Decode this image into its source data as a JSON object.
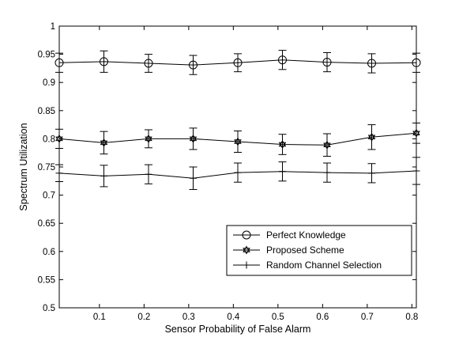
{
  "chart_data": {
    "type": "line",
    "xlabel": "Sensor Probability of False Alarm",
    "ylabel": "Spectrum Utilization",
    "xlim": [
      0.01,
      0.81
    ],
    "ylim": [
      0.5,
      1.0
    ],
    "xticks": [
      0.1,
      0.2,
      0.3,
      0.4,
      0.5,
      0.6,
      0.7,
      0.8
    ],
    "xtick_labels": [
      "0.1",
      "0.2",
      "0.3",
      "0.4",
      "0.5",
      "0.6",
      "0.7",
      "0.8"
    ],
    "yticks": [
      0.5,
      0.55,
      0.6,
      0.65,
      0.7,
      0.75,
      0.8,
      0.85,
      0.9,
      0.95,
      1.0
    ],
    "ytick_labels": [
      "0.5",
      "0.55",
      "0.6",
      "0.65",
      "0.7",
      "0.75",
      "0.8",
      "0.85",
      "0.9",
      "0.95",
      "1"
    ],
    "grid": false,
    "legend_position": "bottom-right",
    "x": [
      0.01,
      0.11,
      0.21,
      0.31,
      0.41,
      0.51,
      0.61,
      0.71,
      0.81
    ],
    "series": [
      {
        "name": "Perfect Knowledge",
        "marker": "circle",
        "values": [
          0.935,
          0.937,
          0.934,
          0.931,
          0.935,
          0.94,
          0.936,
          0.934,
          0.935
        ],
        "errors": [
          0.017,
          0.019,
          0.016,
          0.017,
          0.016,
          0.017,
          0.017,
          0.017,
          0.017
        ]
      },
      {
        "name": "Proposed Scheme",
        "marker": "hexagram",
        "values": [
          0.8,
          0.793,
          0.8,
          0.8,
          0.795,
          0.79,
          0.789,
          0.803,
          0.81
        ],
        "errors": [
          0.017,
          0.02,
          0.016,
          0.019,
          0.019,
          0.018,
          0.02,
          0.022,
          0.018
        ]
      },
      {
        "name": "Random Channel Selection",
        "marker": "plus",
        "values": [
          0.739,
          0.734,
          0.737,
          0.73,
          0.74,
          0.742,
          0.74,
          0.739,
          0.743
        ],
        "errors": [
          0.015,
          0.019,
          0.017,
          0.02,
          0.017,
          0.017,
          0.017,
          0.017,
          0.024
        ]
      }
    ]
  }
}
